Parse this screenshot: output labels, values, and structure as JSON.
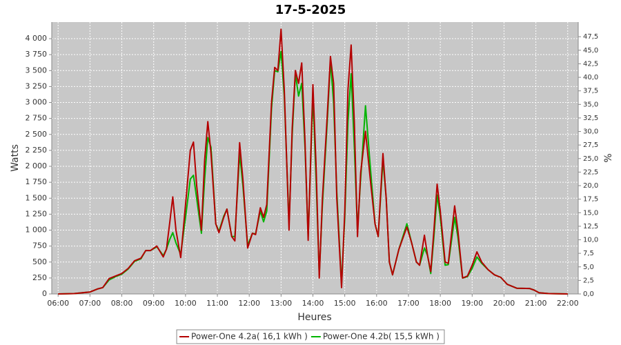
{
  "chart_data": {
    "type": "line",
    "title": "17-5-2025",
    "x_label": "Heures",
    "y_label": "Watts",
    "y2_label": "%",
    "x": [
      6.0,
      6.5,
      7.0,
      7.25,
      7.4,
      7.6,
      7.8,
      8.0,
      8.2,
      8.4,
      8.6,
      8.75,
      8.9,
      9.1,
      9.3,
      9.4,
      9.5,
      9.6,
      9.7,
      9.85,
      10.0,
      10.15,
      10.25,
      10.35,
      10.5,
      10.6,
      10.7,
      10.8,
      10.95,
      11.05,
      11.2,
      11.3,
      11.45,
      11.55,
      11.7,
      11.8,
      11.95,
      12.1,
      12.2,
      12.35,
      12.45,
      12.55,
      12.7,
      12.8,
      12.9,
      13.0,
      13.1,
      13.25,
      13.35,
      13.45,
      13.55,
      13.65,
      13.75,
      13.85,
      14.0,
      14.1,
      14.2,
      14.3,
      14.45,
      14.55,
      14.65,
      14.75,
      14.9,
      15.0,
      15.1,
      15.2,
      15.3,
      15.4,
      15.5,
      15.65,
      15.8,
      15.95,
      16.05,
      16.2,
      16.3,
      16.4,
      16.5,
      16.7,
      16.95,
      17.1,
      17.25,
      17.35,
      17.5,
      17.6,
      17.7,
      17.8,
      17.9,
      18.0,
      18.15,
      18.25,
      18.45,
      18.55,
      18.7,
      18.85,
      19.0,
      19.15,
      19.3,
      19.5,
      19.7,
      19.9,
      20.1,
      20.4,
      20.8,
      20.95,
      21.1,
      21.4,
      22.0
    ],
    "series": [
      {
        "name": "Power-One 4.2a( 16,1 kWh )",
        "color": "#b40000",
        "values": [
          0,
          5,
          30,
          80,
          100,
          240,
          280,
          320,
          400,
          520,
          560,
          680,
          680,
          750,
          580,
          700,
          1100,
          1520,
          1000,
          570,
          1400,
          2250,
          2380,
          1700,
          1000,
          2100,
          2700,
          2200,
          1100,
          960,
          1200,
          1330,
          900,
          830,
          2370,
          1800,
          720,
          950,
          930,
          1350,
          1200,
          1400,
          3000,
          3550,
          3500,
          4150,
          3200,
          1000,
          2600,
          3500,
          3300,
          3620,
          2400,
          840,
          3280,
          2000,
          250,
          1500,
          2800,
          3720,
          3300,
          1500,
          100,
          1300,
          3200,
          3900,
          2700,
          900,
          1900,
          2550,
          1800,
          1100,
          900,
          2200,
          1500,
          500,
          300,
          700,
          1050,
          800,
          500,
          450,
          920,
          600,
          350,
          1000,
          1720,
          1300,
          500,
          480,
          1380,
          1000,
          250,
          280,
          450,
          660,
          500,
          380,
          300,
          260,
          150,
          90,
          85,
          60,
          20,
          5,
          0
        ]
      },
      {
        "name": "Power-One 4.2b( 15,5 kWh )",
        "color": "#00b400",
        "values": [
          0,
          5,
          30,
          80,
          100,
          220,
          270,
          310,
          390,
          510,
          550,
          680,
          680,
          740,
          600,
          700,
          850,
          960,
          800,
          620,
          1200,
          1800,
          1860,
          1500,
          950,
          1800,
          2450,
          2300,
          1100,
          980,
          1220,
          1330,
          900,
          900,
          2200,
          1700,
          760,
          950,
          940,
          1300,
          1130,
          1300,
          2900,
          3500,
          3480,
          3800,
          3100,
          1100,
          2500,
          3450,
          3100,
          3300,
          2300,
          900,
          3100,
          1800,
          300,
          1400,
          2700,
          3650,
          3000,
          1600,
          150,
          1200,
          2700,
          3450,
          2300,
          1000,
          1800,
          2950,
          2000,
          1100,
          900,
          2100,
          1500,
          500,
          300,
          700,
          1100,
          800,
          500,
          450,
          720,
          600,
          320,
          900,
          1550,
          1200,
          450,
          460,
          1200,
          900,
          250,
          270,
          400,
          580,
          480,
          380,
          300,
          260,
          150,
          90,
          85,
          60,
          20,
          5,
          0
        ]
      }
    ],
    "xlim": [
      5.8,
      22.33
    ],
    "xticks": [
      {
        "value": 6,
        "label": "06:00"
      },
      {
        "value": 7,
        "label": "07:00"
      },
      {
        "value": 8,
        "label": "08:00"
      },
      {
        "value": 9,
        "label": "09:00"
      },
      {
        "value": 10,
        "label": "10:00"
      },
      {
        "value": 11,
        "label": "11:00"
      },
      {
        "value": 12,
        "label": "12:00"
      },
      {
        "value": 13,
        "label": "13:00"
      },
      {
        "value": 14,
        "label": "14:00"
      },
      {
        "value": 15,
        "label": "15:00"
      },
      {
        "value": 16,
        "label": "16:00"
      },
      {
        "value": 17,
        "label": "17:00"
      },
      {
        "value": 18,
        "label": "18:00"
      },
      {
        "value": 19,
        "label": "19:00"
      },
      {
        "value": 20,
        "label": "20:00"
      },
      {
        "value": 21,
        "label": "21:00"
      },
      {
        "value": 22,
        "label": "22:00"
      }
    ],
    "ylim": [
      0,
      4260
    ],
    "yticks": [
      0,
      250,
      500,
      750,
      {
        "value": 1000,
        "label": "1 000"
      },
      {
        "value": 1250,
        "label": "1 250"
      },
      {
        "value": 1500,
        "label": "1 500"
      },
      {
        "value": 1750,
        "label": "1 750"
      },
      {
        "value": 2000,
        "label": "2 000"
      },
      {
        "value": 2250,
        "label": "2 250"
      },
      {
        "value": 2500,
        "label": "2 500"
      },
      {
        "value": 2750,
        "label": "2 750"
      },
      {
        "value": 3000,
        "label": "3 000"
      },
      {
        "value": 3250,
        "label": "3 250"
      },
      {
        "value": 3500,
        "label": "3 500"
      },
      {
        "value": 3750,
        "label": "3 750"
      },
      {
        "value": 4000,
        "label": "4 000"
      }
    ],
    "y2lim": [
      0,
      50.2
    ],
    "y2ticks": [
      {
        "value": 0,
        "label": "0,0"
      },
      {
        "value": 2.5,
        "label": "2,5"
      },
      {
        "value": 5,
        "label": "5,0"
      },
      {
        "value": 7.5,
        "label": "7,5"
      },
      {
        "value": 10,
        "label": "10,0"
      },
      {
        "value": 12.5,
        "label": "12,5"
      },
      {
        "value": 15,
        "label": "15,0"
      },
      {
        "value": 17.5,
        "label": "17,5"
      },
      {
        "value": 20,
        "label": "20,0"
      },
      {
        "value": 22.5,
        "label": "22,5"
      },
      {
        "value": 25,
        "label": "25,0"
      },
      {
        "value": 27.5,
        "label": "27,5"
      },
      {
        "value": 30,
        "label": "30,0"
      },
      {
        "value": 32.5,
        "label": "32,5"
      },
      {
        "value": 35,
        "label": "35,0"
      },
      {
        "value": 37.5,
        "label": "37,5"
      },
      {
        "value": 40,
        "label": "40,0"
      },
      {
        "value": 42.5,
        "label": "42,5"
      },
      {
        "value": 45,
        "label": "45,0"
      },
      {
        "value": 47.5,
        "label": "47,5"
      }
    ],
    "grid": true,
    "legend": "bottom"
  }
}
